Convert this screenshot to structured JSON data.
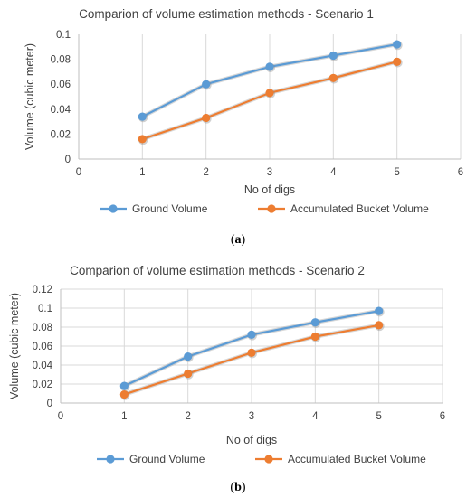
{
  "chart_data": [
    {
      "type": "line",
      "title": "Comparion of volume estimation methods - Scenario 1",
      "xlabel": "No of digs",
      "ylabel": "Volume (cubic meter)",
      "xlim": [
        0,
        6
      ],
      "ylim": [
        0,
        0.1
      ],
      "xticks": [
        "0",
        "1",
        "2",
        "3",
        "4",
        "5",
        "6"
      ],
      "yticks": [
        "0",
        "0.02",
        "0.04",
        "0.06",
        "0.08",
        "0.1"
      ],
      "grid": "vertical",
      "legend": "bottom",
      "series": [
        {
          "name": "Ground Volume",
          "color": "#5B9BD5",
          "x": [
            1,
            2,
            3,
            4,
            5
          ],
          "values": [
            0.034,
            0.06,
            0.074,
            0.083,
            0.092
          ]
        },
        {
          "name": "Accumulated Bucket Volume",
          "color": "#ED7D31",
          "x": [
            1,
            2,
            3,
            4,
            5
          ],
          "values": [
            0.016,
            0.033,
            0.053,
            0.065,
            0.078
          ]
        }
      ],
      "caption_label": "a"
    },
    {
      "type": "line",
      "title": "Comparion of volume estimation methods - Scenario 2",
      "xlabel": "No of digs",
      "ylabel": "Volume (cubic meter)",
      "xlim": [
        0,
        6
      ],
      "ylim": [
        0,
        0.12
      ],
      "xticks": [
        "0",
        "1",
        "2",
        "3",
        "4",
        "5",
        "6"
      ],
      "yticks": [
        "0",
        "0.02",
        "0.04",
        "0.06",
        "0.08",
        "0.1",
        "0.12"
      ],
      "grid": "both",
      "legend": "bottom",
      "series": [
        {
          "name": "Ground Volume",
          "color": "#5B9BD5",
          "x": [
            1,
            2,
            3,
            4,
            5
          ],
          "values": [
            0.018,
            0.049,
            0.072,
            0.085,
            0.097
          ]
        },
        {
          "name": "Accumulated Bucket Volume",
          "color": "#ED7D31",
          "x": [
            1,
            2,
            3,
            4,
            5
          ],
          "values": [
            0.009,
            0.031,
            0.053,
            0.07,
            0.082
          ]
        }
      ],
      "caption_label": "b"
    }
  ]
}
